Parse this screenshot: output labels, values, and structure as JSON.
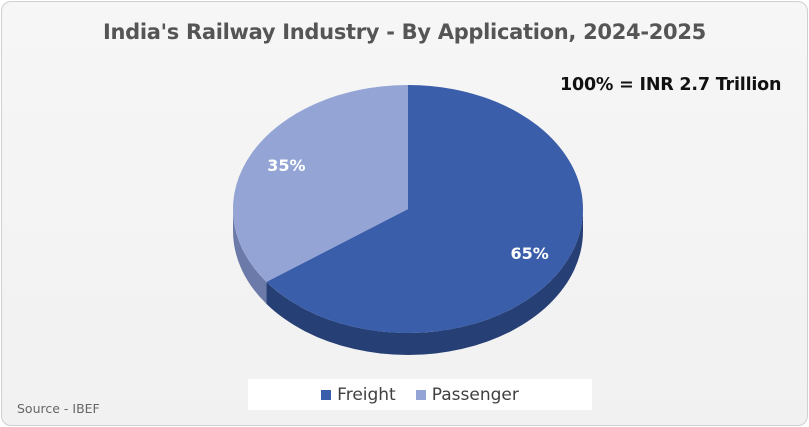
{
  "chart_data": {
    "type": "pie",
    "title": "India's Railway Industry - By Application, 2024-2025",
    "annotation": "100% = INR 2.7 Trillion",
    "slices": [
      {
        "name": "Freight",
        "value": 65,
        "label": "65%",
        "color": "#3a5ea9",
        "side_color": "#263f75"
      },
      {
        "name": "Passenger",
        "value": 35,
        "label": "35%",
        "color": "#93a4d5",
        "side_color": "#6b7aa8"
      }
    ],
    "legend": {
      "position": "bottom",
      "items": [
        "Freight",
        "Passenger"
      ]
    },
    "source": "Source - IBEF"
  }
}
